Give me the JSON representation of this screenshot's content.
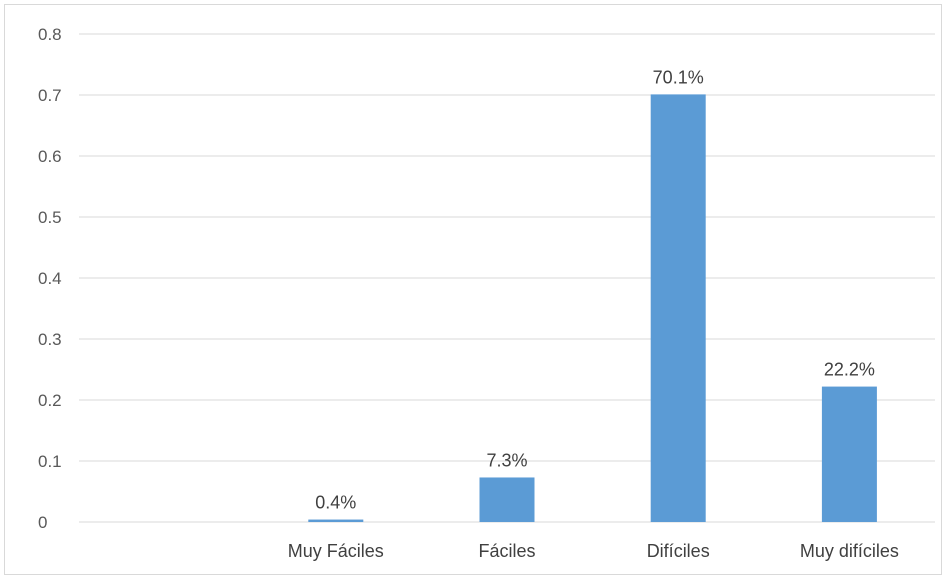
{
  "chart_data": {
    "type": "bar",
    "categories": [
      "",
      "Muy Fáciles",
      "Fáciles",
      "Difíciles",
      "Muy difíciles"
    ],
    "values": [
      null,
      0.004,
      0.073,
      0.701,
      0.222
    ],
    "data_labels": [
      "",
      "0.4%",
      "7.3%",
      "70.1%",
      "22.2%"
    ],
    "yticks": [
      "0",
      "0.1",
      "0.2",
      "0.3",
      "0.4",
      "0.5",
      "0.6",
      "0.7",
      "0.8"
    ],
    "ylim": [
      0,
      0.8
    ],
    "grid": true,
    "bar_color": "#5b9bd5"
  }
}
